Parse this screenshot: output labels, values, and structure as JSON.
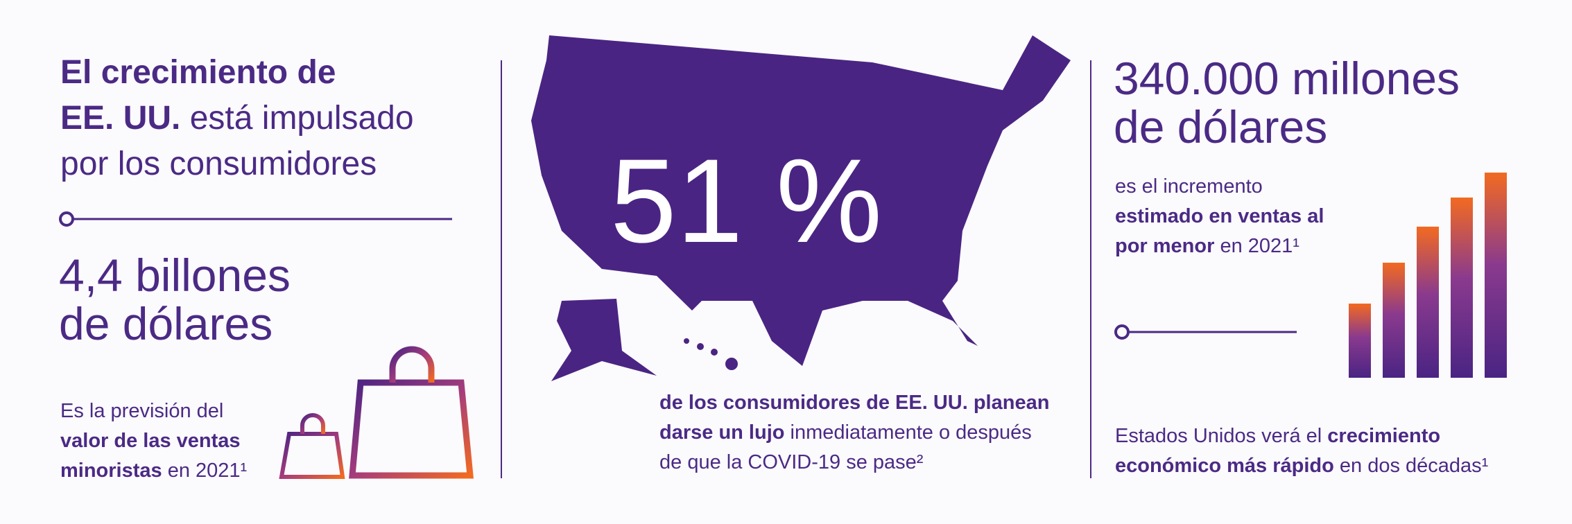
{
  "left": {
    "heading": [
      "El crecimiento de",
      "EE. UU.",
      " está impulsado",
      "por los consumidores"
    ],
    "figure": [
      "4,4 billones",
      "de dólares"
    ],
    "note": [
      "Es la previsión del",
      "valor de las ventas",
      "minoristas",
      " en 2021¹"
    ]
  },
  "center": {
    "figure": "51 %",
    "note": [
      "de los consumidores de EE. UU. planean",
      "darse un lujo",
      " inmediatamente o después",
      "de que la COVID-19 se pase²"
    ]
  },
  "right": {
    "figure": [
      "340.000 millones",
      "de dólares"
    ],
    "note": [
      "es el incremento",
      "estimado en ventas al",
      "por menor",
      " en 2021¹"
    ],
    "footer": [
      "Estados Unidos verá el ",
      "crecimiento",
      "económico más rápido",
      " en dos décadas¹"
    ]
  }
}
